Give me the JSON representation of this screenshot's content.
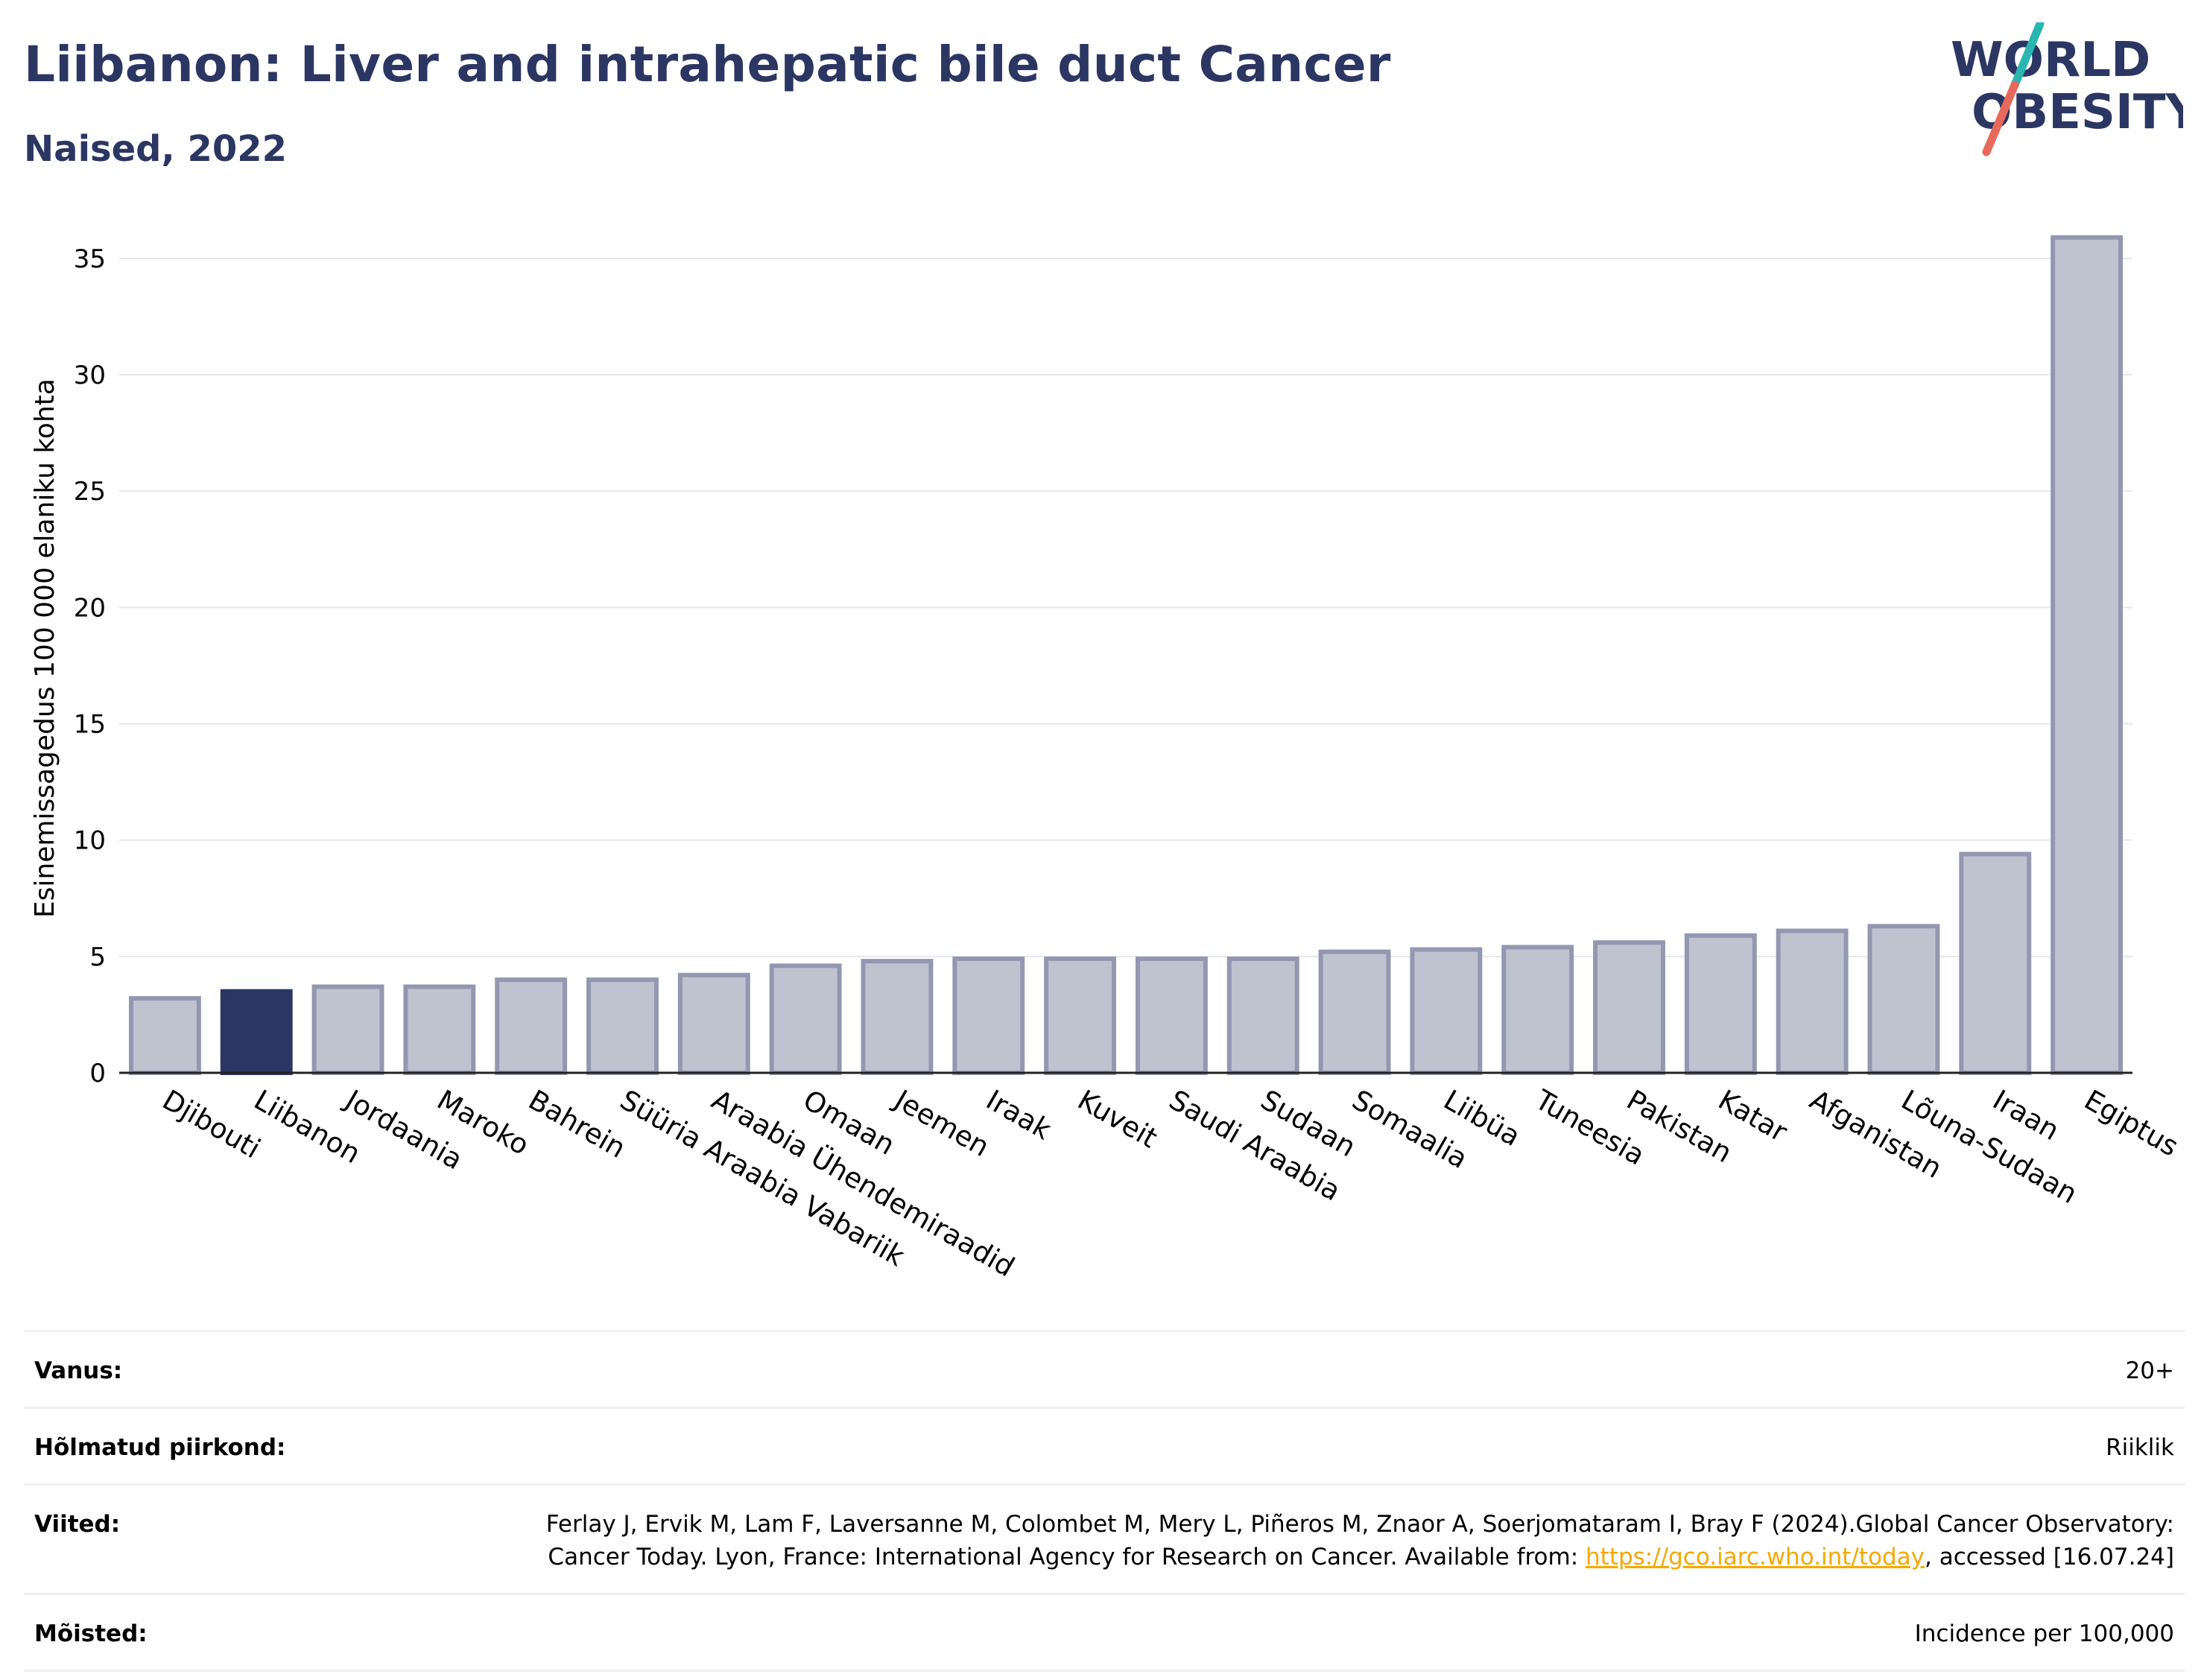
{
  "header": {
    "title": "Liibanon: Liver and intrahepatic bile duct Cancer",
    "subtitle": "Naised, 2022"
  },
  "logo": {
    "line1": "WORLD",
    "line2": "OBESITY",
    "colors": {
      "text": "#2b3663",
      "slash_top": "#2ab5b1",
      "slash_bottom": "#e8695c"
    }
  },
  "colors": {
    "highlight_bar": "#2b3663",
    "other_bar_fill": "#bfc3d0",
    "other_bar_stroke": "#9298b0",
    "grid": "#e6e6ec",
    "axis": "#222222",
    "link": "#f5a800"
  },
  "chart_data": {
    "type": "bar",
    "ylabel": "Esinemissagedus 100 000 elaniku kohta",
    "ylim": [
      0,
      36.5
    ],
    "yticks": [
      0,
      5,
      10,
      15,
      20,
      25,
      30,
      35
    ],
    "grid": true,
    "highlight": "Liibanon",
    "categories": [
      "Djibouti",
      "Liibanon",
      "Jordaania",
      "Maroko",
      "Bahrein",
      "Süüria Araabia Vabariik",
      "Araabia Ühendemiraadid",
      "Omaan",
      "Jeemen",
      "Iraak",
      "Kuveit",
      "Saudi Araabia",
      "Sudaan",
      "Somaalia",
      "Liibüa",
      "Tuneesia",
      "Pakistan",
      "Katar",
      "Afganistan",
      "Lõuna-Sudaan",
      "Iraan",
      "Egiptus"
    ],
    "values": [
      3.2,
      3.5,
      3.7,
      3.7,
      4.0,
      4.0,
      4.2,
      4.6,
      4.8,
      4.9,
      4.9,
      4.9,
      4.9,
      5.2,
      5.3,
      5.4,
      5.6,
      5.9,
      6.1,
      6.3,
      9.4,
      35.9
    ]
  },
  "info": {
    "age_label": "Vanus:",
    "age_value": "20+",
    "region_label": "Hõlmatud piirkond:",
    "region_value": "Riiklik",
    "refs_label": "Viited:",
    "refs_text1": "Ferlay J, Ervik M, Lam F, Laversanne M, Colombet M, Mery L, Piñeros M, Znaor A, Soerjomataram I, Bray F (2024).Global Cancer Observatory: Cancer Today. Lyon, France: International Agency for Research on Cancer. Available from: ",
    "refs_link": "https://gco.iarc.who.int/today",
    "refs_text2": ", accessed [16.07.24]",
    "defs_label": "Mõisted:",
    "defs_value": "Incidence per 100,000"
  }
}
